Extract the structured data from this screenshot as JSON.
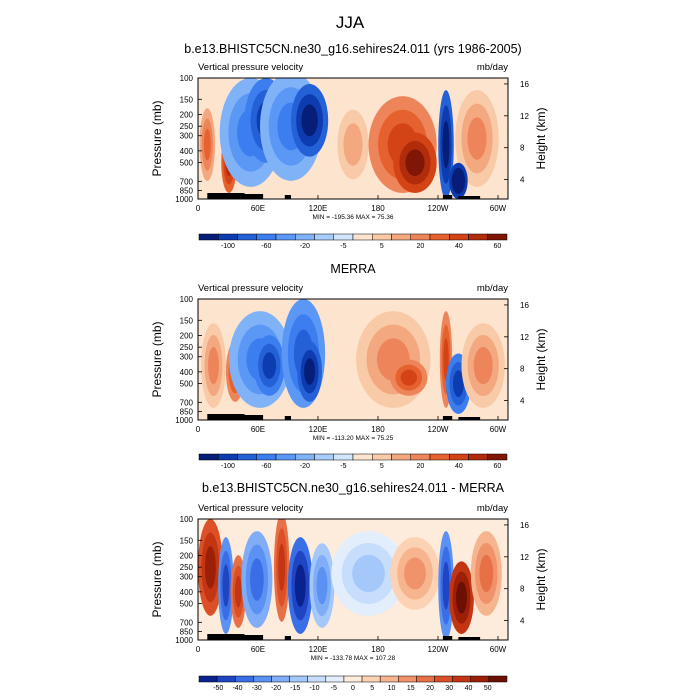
{
  "figure": {
    "title": "JJA"
  },
  "colors": {
    "blues": [
      "#061e78",
      "#0d3bb0",
      "#2460d6",
      "#3c7ef0",
      "#5b97f5",
      "#80b2f8",
      "#a9cdfa",
      "#d1e5fc"
    ],
    "reds": [
      "#fde4cf",
      "#f9caa8",
      "#f4a880",
      "#ee855a",
      "#e5622f",
      "#d44316",
      "#b02c0b",
      "#801706"
    ],
    "blues_diff": [
      "#0a2290",
      "#2045c2",
      "#3a6ee6",
      "#5b91f2",
      "#7fadf7",
      "#a4c8fa",
      "#c6ddfc",
      "#e3eefd"
    ],
    "reds_diff": [
      "#fdebdc",
      "#fbd3b4",
      "#f6b48f",
      "#f0926a",
      "#e87046",
      "#dc5027",
      "#c43613",
      "#9c1f07",
      "#6c1003"
    ]
  },
  "chart_data": [
    {
      "type": "heatmap",
      "panel_title": "b.e13.BHISTC5CN.ne30_g16.sehires24.011 (yrs 1986-2005)",
      "left_label": "Vertical pressure velocity",
      "right_label": "mb/day",
      "ylabel": "Pressure (mb)",
      "y2label": "Height (km)",
      "y_ticks": [
        "100",
        "150",
        "200",
        "250",
        "300",
        "400",
        "500",
        "700",
        "850",
        "1000"
      ],
      "y2_ticks": [
        "16",
        "12",
        "8",
        "4"
      ],
      "x_ticks": [
        "0",
        "60E",
        "120E",
        "180",
        "120W",
        "60W"
      ],
      "stats": "MIN = -195.36  MAX = 75.36",
      "colorbar_levels": [
        "-100",
        "-60",
        "-20",
        "-5",
        "5",
        "20",
        "40",
        "60"
      ]
    },
    {
      "type": "heatmap",
      "panel_title": "MERRA",
      "left_label": "Vertical pressure velocity",
      "right_label": "mb/day",
      "ylabel": "Pressure (mb)",
      "y2label": "Height (km)",
      "y_ticks": [
        "100",
        "150",
        "200",
        "250",
        "300",
        "400",
        "500",
        "700",
        "850",
        "1000"
      ],
      "y2_ticks": [
        "16",
        "12",
        "8",
        "4"
      ],
      "x_ticks": [
        "0",
        "60E",
        "120E",
        "180",
        "120W",
        "60W"
      ],
      "stats": "MIN = -113.20  MAX = 75.25",
      "colorbar_levels": [
        "-100",
        "-60",
        "-20",
        "-5",
        "5",
        "20",
        "40",
        "60"
      ]
    },
    {
      "type": "heatmap",
      "panel_title": "b.e13.BHISTC5CN.ne30_g16.sehires24.011 - MERRA",
      "left_label": "Vertical pressure velocity",
      "right_label": "mb/day",
      "ylabel": "Pressure (mb)",
      "y2label": "Height (km)",
      "y_ticks": [
        "100",
        "150",
        "200",
        "250",
        "300",
        "400",
        "500",
        "700",
        "850",
        "1000"
      ],
      "y2_ticks": [
        "16",
        "12",
        "8",
        "4"
      ],
      "x_ticks": [
        "0",
        "60E",
        "120E",
        "180",
        "120W",
        "60W"
      ],
      "stats": "MIN = -133.78  MAX = 107.28",
      "colorbar_levels": [
        "-50",
        "-40",
        "-30",
        "-20",
        "-15",
        "-10",
        "-5",
        "0",
        "5",
        "10",
        "15",
        "20",
        "30",
        "40",
        "50"
      ]
    }
  ]
}
